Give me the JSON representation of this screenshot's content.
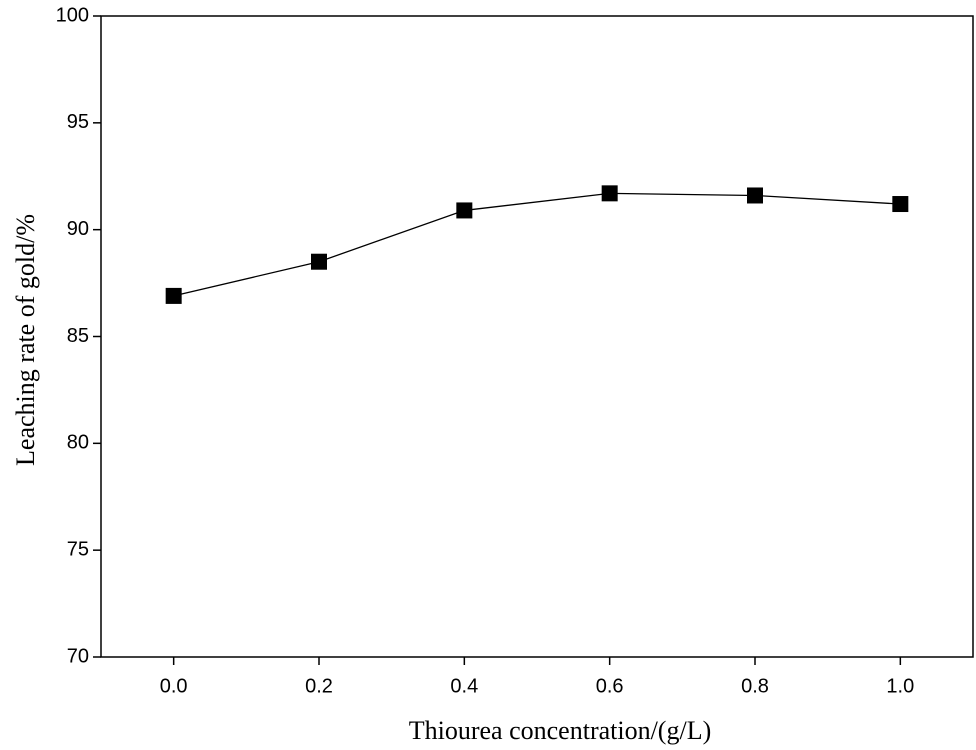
{
  "chart_data": {
    "type": "line",
    "x_label": "Thiourea concentration/(g/L)",
    "y_label": "Leaching rate of gold/%",
    "x": [
      0,
      0.2,
      0.4,
      0.6,
      0.8,
      1.0
    ],
    "values": [
      86.9,
      88.5,
      90.9,
      91.7,
      91.6,
      91.2
    ],
    "color": "#000000",
    "marker": "square",
    "xlim": [
      -0.1,
      1.1
    ],
    "xticks": [
      {
        "value": 0,
        "label": "0.0"
      },
      0.2,
      0.4,
      0.6,
      0.8,
      {
        "value": 1,
        "label": "1.0"
      }
    ],
    "ylim": [
      70,
      100
    ],
    "yticks": [
      70,
      75,
      80,
      85,
      90,
      95,
      100
    ]
  }
}
